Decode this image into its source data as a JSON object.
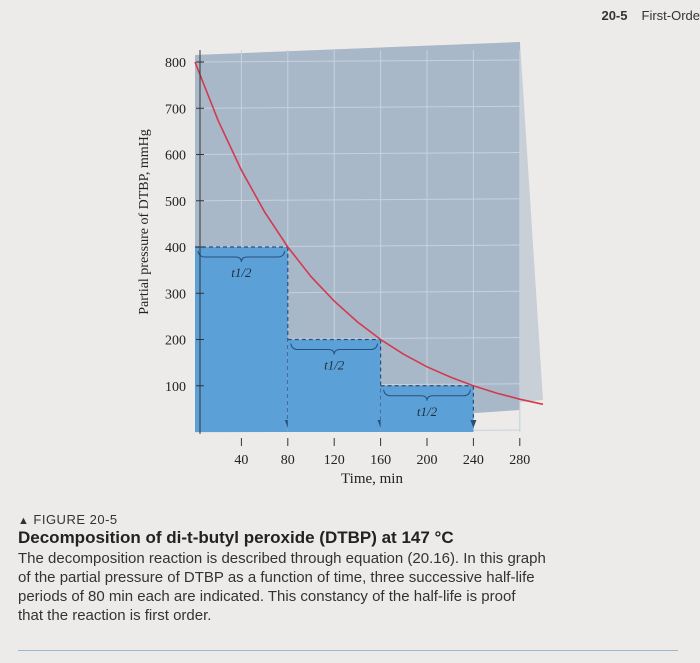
{
  "header": {
    "section_number": "20-5",
    "section_title": "First-Orde"
  },
  "chart_data": {
    "type": "line",
    "title": "",
    "xlabel": "Time, min",
    "ylabel": "Partial pressure of DTBP, mmHg",
    "xlim": [
      0,
      300
    ],
    "ylim": [
      0,
      850
    ],
    "xticks": [
      40,
      80,
      120,
      160,
      200,
      240,
      280
    ],
    "yticks": [
      100,
      200,
      300,
      400,
      500,
      600,
      700,
      800
    ],
    "grid": true,
    "series": [
      {
        "name": "",
        "color": "#d23a4e",
        "x": [
          0,
          20,
          40,
          60,
          80,
          100,
          120,
          140,
          160,
          180,
          200,
          220,
          240,
          260,
          280,
          300
        ],
        "y": [
          800,
          673,
          566,
          476,
          400,
          336,
          283,
          238,
          200,
          168,
          141,
          119,
          100,
          84,
          71,
          60
        ]
      }
    ],
    "half_life_steps": [
      {
        "start": 0,
        "end": 80,
        "level": 400,
        "label": "t1/2"
      },
      {
        "start": 80,
        "end": 160,
        "level": 200,
        "label": "t1/2"
      },
      {
        "start": 160,
        "end": 240,
        "level": 100,
        "label": "t1/2"
      }
    ],
    "colors": {
      "plot_bg": "#a9b8c8",
      "step_fill": "#5ba1d8",
      "curve": "#d23a4e",
      "grid": "#c7d1dc"
    }
  },
  "caption": {
    "label": "FIGURE 20-5",
    "title": "Decomposition of di-t-butyl peroxide (DTBP) at 147 °C",
    "lines": [
      "The decomposition reaction is described through equation (20.16). In this graph",
      "of the partial pressure of DTBP as a function of time, three successive half-life",
      "periods of 80 min each are indicated. This constancy of the half-life is proof",
      "that the reaction is first order."
    ]
  }
}
